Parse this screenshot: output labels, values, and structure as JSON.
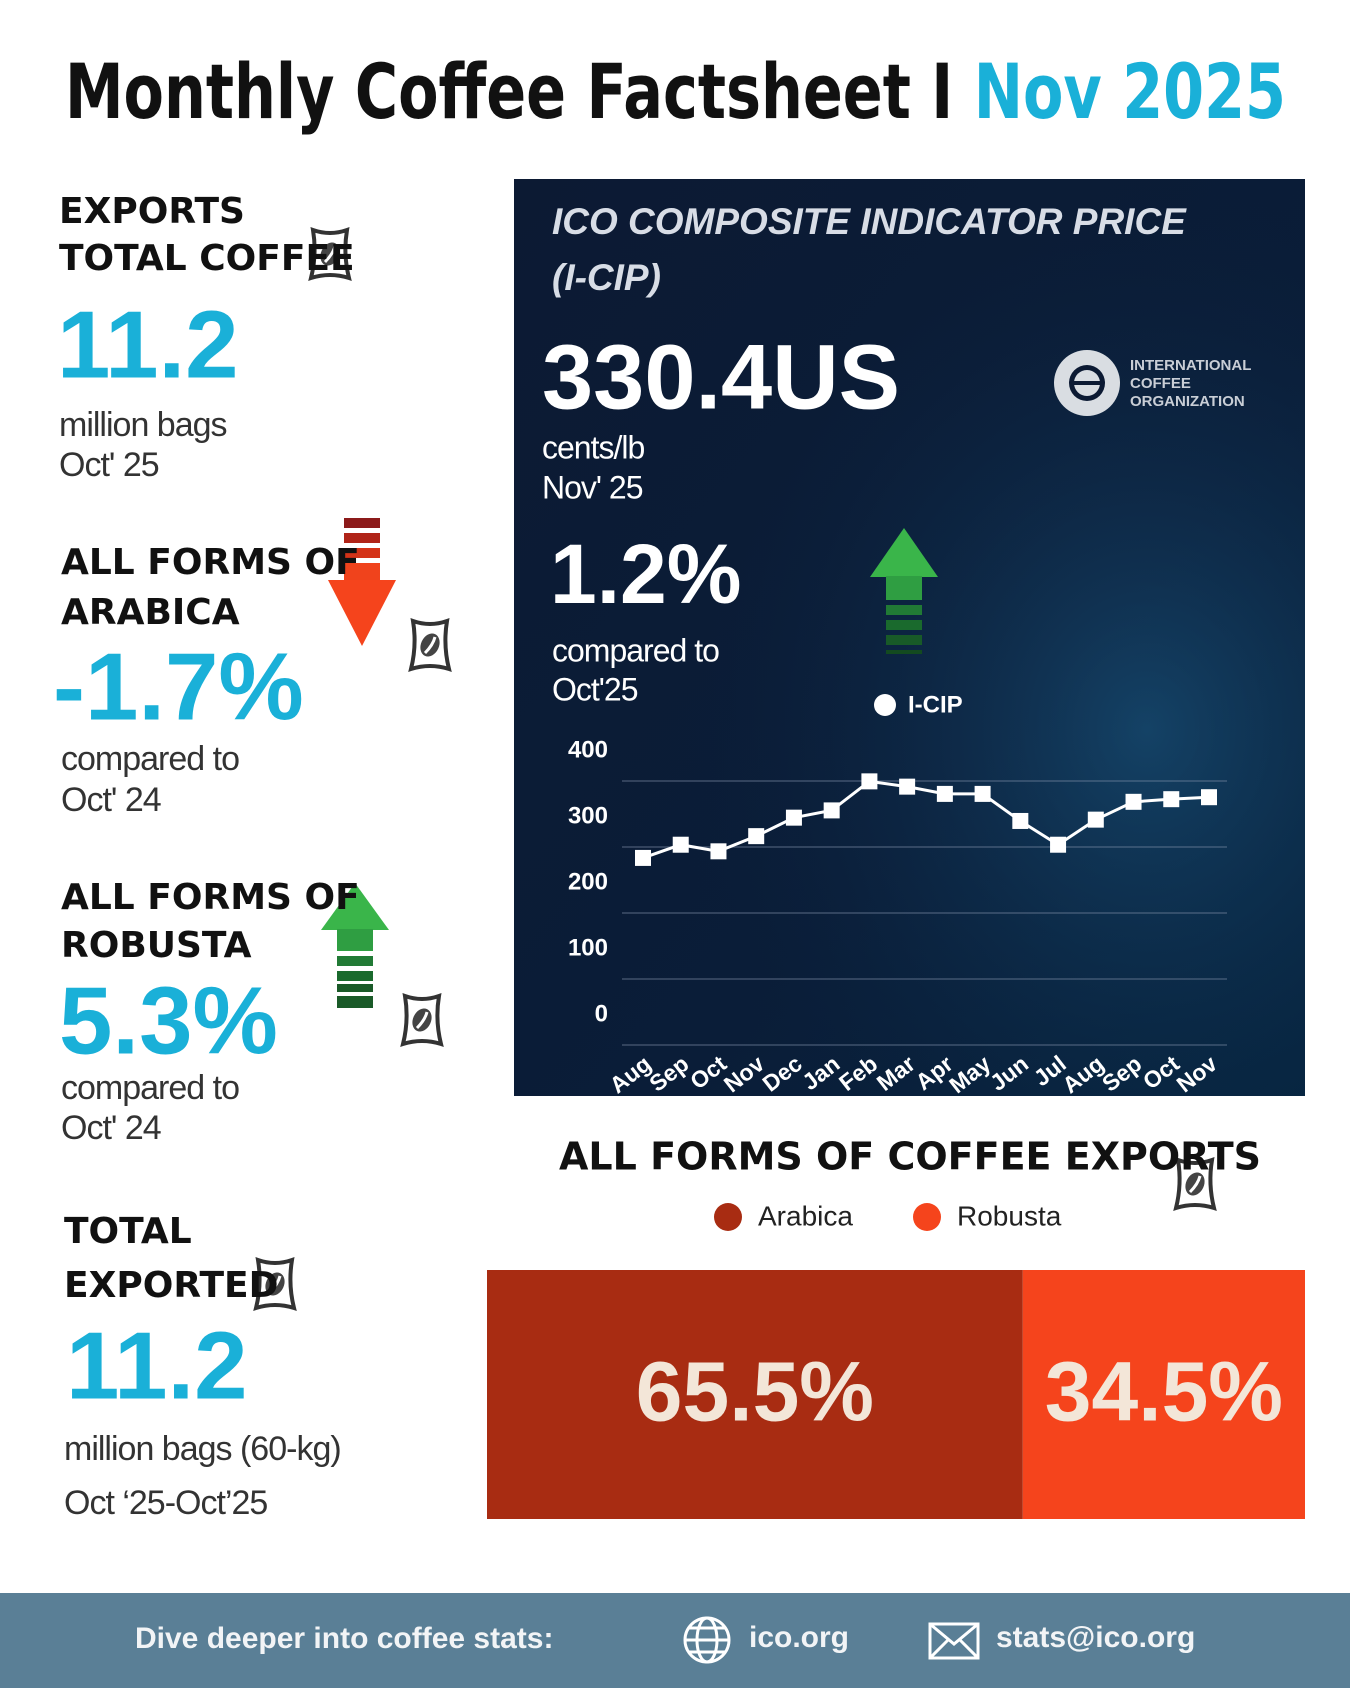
{
  "header": {
    "title": "Monthly Coffee Factsheet I",
    "highlight": "Nov 2025"
  },
  "stats": [
    {
      "label": [
        "EXPORTS",
        "TOTAL COFFEE"
      ],
      "value": "11.2",
      "lines": [
        "million bags",
        "Oct' 25"
      ]
    },
    {
      "label": [
        "ALL FORMS OF",
        "ARABICA"
      ],
      "value": "-1.7%",
      "lines": [
        "compared to",
        "Oct' 24"
      ]
    },
    {
      "label": [
        "ALL FORMS OF",
        "ROBUSTA"
      ],
      "value": "5.3%",
      "lines": [
        "compared to",
        "Oct' 24"
      ]
    },
    {
      "label": [
        "TOTAL",
        "EXPORTED"
      ],
      "value": "11.2",
      "lines": [
        "million bags (60-kg)",
        "Oct ‘25-Oct’25"
      ]
    }
  ],
  "price_panel": {
    "title": [
      "ICO COMPOSITE INDICATOR PRICE",
      "(I-CIP)"
    ],
    "value": "330.4US",
    "lines": [
      "cents/lb",
      "Nov' 25"
    ],
    "change": "1.2%",
    "change_lines": [
      "compared to",
      "Oct'25"
    ],
    "logo": [
      "INTERNATIONAL",
      "COFFEE",
      "ORGANIZATION"
    ]
  },
  "chart_data": [
    {
      "type": "line",
      "categories": [
        "Aug",
        "Sep",
        "Oct",
        "Nov",
        "Dec",
        "Jan",
        "Feb",
        "Mar",
        "Apr",
        "May",
        "Jun",
        "Jul",
        "Aug",
        "Sep",
        "Oct",
        "Nov"
      ],
      "series": [
        {
          "name": "I-CIP",
          "color": "#ffffff",
          "values": [
            238,
            258,
            248,
            271,
            299,
            310,
            354,
            346,
            335,
            335,
            294,
            258,
            296,
            323,
            327,
            330
          ]
        }
      ],
      "ylim": [
        0,
        400
      ],
      "yticks": [
        0,
        100,
        200,
        300,
        400
      ],
      "grid": true
    },
    {
      "type": "stacked-bar",
      "title": "ALL FORMS OF COFFEE EXPORTS",
      "xlim": [
        0,
        100
      ],
      "series": [
        {
          "name": "Arabica",
          "color": "#a82c12",
          "values": [
            65.5
          ],
          "value_labels": [
            "65.5%"
          ]
        },
        {
          "name": "Robusta",
          "color": "#f5441c",
          "values": [
            34.5
          ],
          "value_labels": [
            "34.5%"
          ]
        }
      ]
    }
  ],
  "footer": {
    "text": "Dive deeper into coffee stats:",
    "links": [
      "ico.org",
      "stats@ico.org"
    ]
  }
}
